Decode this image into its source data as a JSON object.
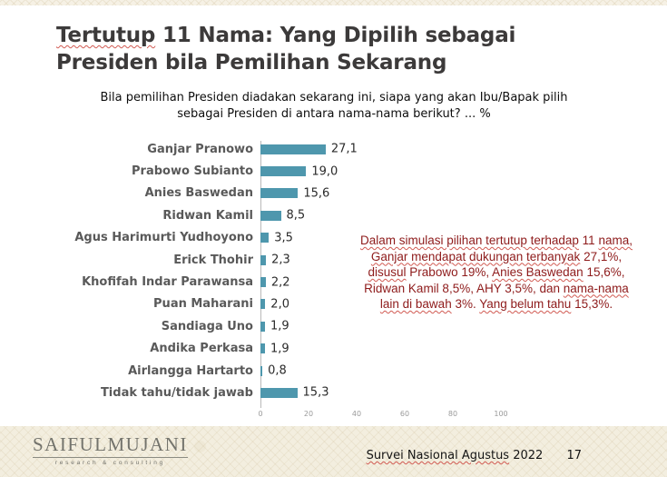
{
  "title": {
    "color": "#3c3a3a",
    "line1_segments": [
      {
        "t": "Tertutup",
        "sq": true
      },
      {
        "t": " 11 Nama: Yang Dipilih sebagai",
        "sq": false
      }
    ],
    "line2": "Presiden bila Pemilihan Sekarang"
  },
  "subtitle": {
    "line1": "Bila pemilihan Presiden diadakan sekarang ini, siapa yang akan Ibu/Bapak pilih",
    "line2": "sebagai Presiden di antara nama-nama berikut? ... %"
  },
  "chart_data": {
    "type": "bar",
    "orientation": "horizontal",
    "title": "",
    "xlabel": "",
    "ylabel": "",
    "categories": [
      "Ganjar Pranowo",
      "Prabowo Subianto",
      "Anies Baswedan",
      "Ridwan Kamil",
      "Agus Harimurti Yudhoyono",
      "Erick Thohir",
      "Khofifah Indar Parawansa",
      "Puan Maharani",
      "Sandiaga Uno",
      "Andika Perkasa",
      "Airlangga Hartarto",
      "Tidak tahu/tidak jawab"
    ],
    "values": [
      27.1,
      19.0,
      15.6,
      8.5,
      3.5,
      2.3,
      2.2,
      2.0,
      1.9,
      1.9,
      0.8,
      15.3
    ],
    "value_labels": [
      "27,1",
      "19,0",
      "15,6",
      "8,5",
      "3,5",
      "2,3",
      "2,2",
      "2,0",
      "1,9",
      "1,9",
      "0,8",
      "15,3"
    ],
    "x_ticks": [
      "0",
      "20",
      "40",
      "60",
      "80",
      "100"
    ],
    "xlim": [
      0,
      100
    ],
    "bar_color": "#4e97ad",
    "grid": false,
    "legend": false
  },
  "annotation": {
    "color": "#8e1b1b",
    "lines": [
      [
        {
          "t": "Dalam simulasi pilihan tertutup terhadap",
          "sq": true
        },
        {
          "t": " 11 ",
          "sq": false
        },
        {
          "t": "nama,",
          "sq": true
        }
      ],
      [
        {
          "t": "Ganjar mendapat dukungan terbanyak",
          "sq": true
        },
        {
          "t": " 27,1%,",
          "sq": false
        }
      ],
      [
        {
          "t": "disusul",
          "sq": true
        },
        {
          "t": " Prabowo 19%, ",
          "sq": false
        },
        {
          "t": "Anies Baswedan",
          "sq": true
        },
        {
          "t": " 15,6%,",
          "sq": false
        }
      ],
      [
        {
          "t": "Ridwan Kamil 8,5%, AHY 3,5%, dan ",
          "sq": false
        },
        {
          "t": "nama-nama",
          "sq": true
        }
      ],
      [
        {
          "t": "lain di bawah",
          "sq": true
        },
        {
          "t": " 3%. ",
          "sq": false
        },
        {
          "t": "Yang belum tahu",
          "sq": true
        },
        {
          "t": " 15,3%.",
          "sq": false
        }
      ]
    ]
  },
  "footer": {
    "band_color": "#f3eedf",
    "logo_name": "SAIFULMUJANI",
    "logo_subtitle": "research & consulting",
    "survey_label_segments": [
      {
        "t": "Survei Nasional Agustus",
        "sq": true
      },
      {
        "t": " 2022",
        "sq": false
      }
    ],
    "page_number": "17"
  }
}
